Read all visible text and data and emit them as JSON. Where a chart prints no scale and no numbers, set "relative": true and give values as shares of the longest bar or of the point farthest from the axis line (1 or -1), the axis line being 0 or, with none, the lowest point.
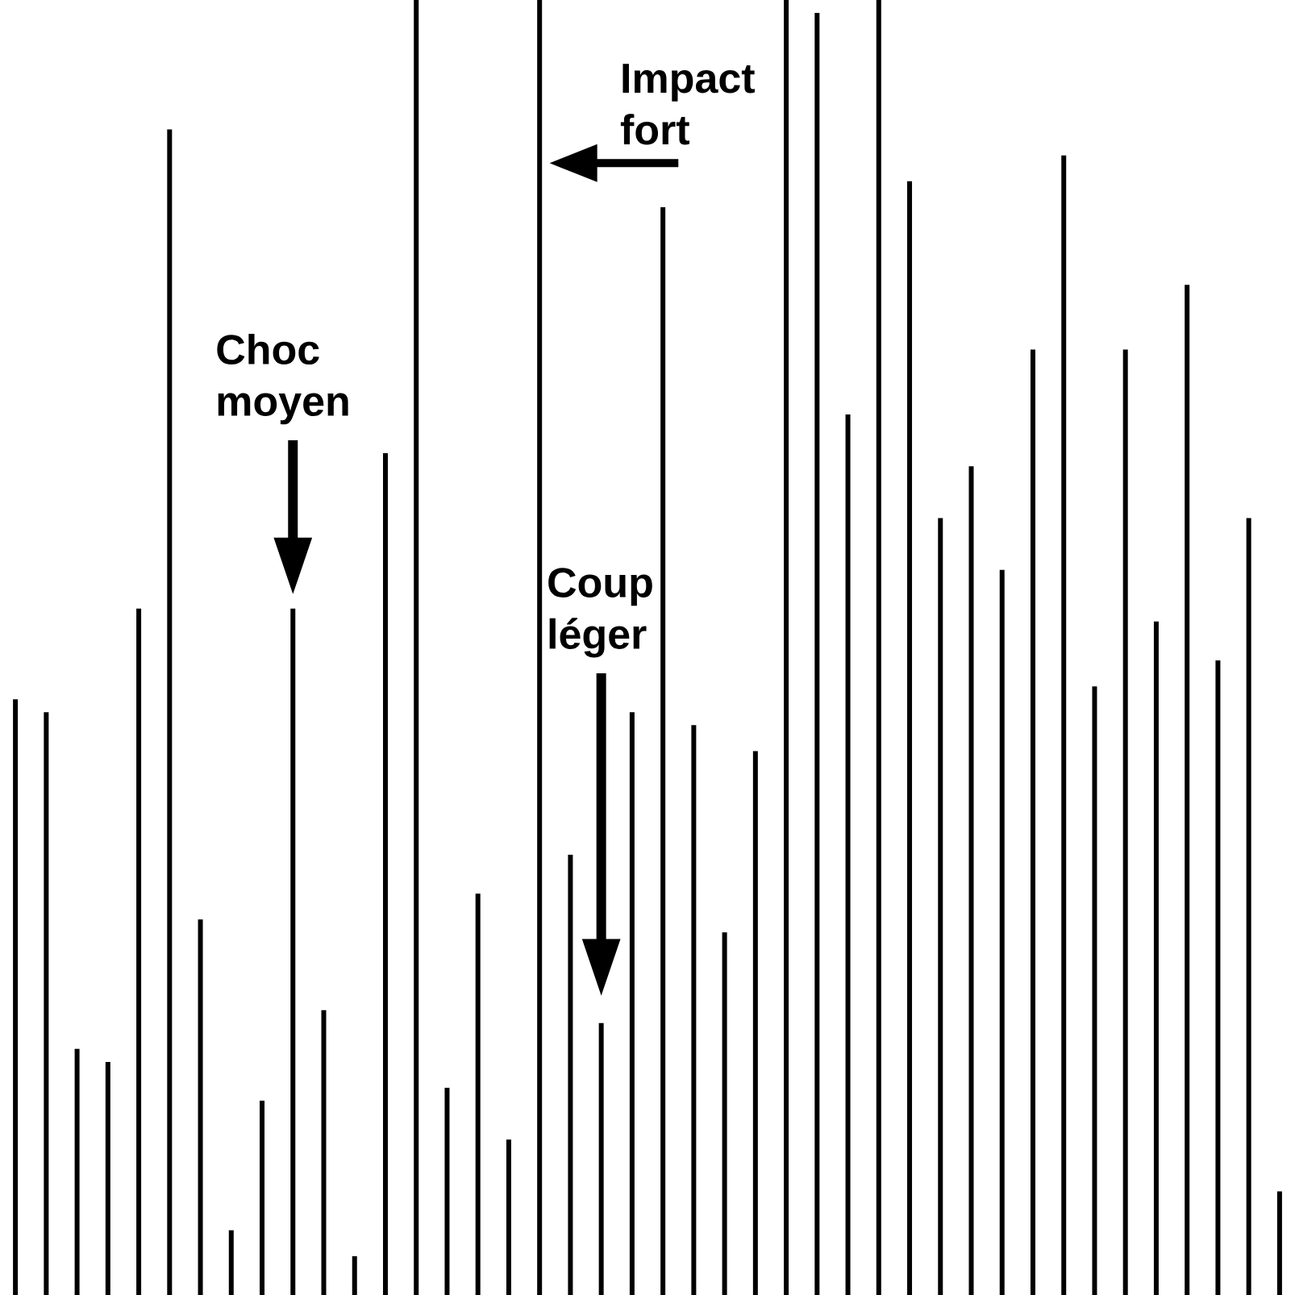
{
  "chart_data": {
    "type": "bar",
    "relative": true,
    "categories": [
      null,
      null,
      null,
      null,
      null,
      null,
      null,
      null,
      null,
      null,
      null,
      null,
      null,
      null,
      null,
      null,
      null,
      null,
      null,
      null,
      null,
      null,
      null,
      null,
      null,
      null,
      null,
      null,
      null,
      null,
      null,
      null,
      null,
      null,
      null,
      null,
      null,
      null,
      null,
      null,
      null,
      null
    ],
    "values": [
      0.46,
      0.45,
      0.19,
      0.18,
      0.53,
      0.9,
      0.29,
      0.05,
      0.15,
      0.53,
      0.22,
      0.03,
      0.65,
      1,
      0.16,
      0.31,
      0.12,
      1,
      0.34,
      0.21,
      0.45,
      0.84,
      0.44,
      0.28,
      0.42,
      1,
      0.99,
      0.68,
      1,
      0.86,
      0.6,
      0.64,
      0.56,
      0.73,
      0.88,
      0.47,
      0.73,
      0.52,
      0.78,
      0.49,
      0.6,
      0.08
    ],
    "color": "#000000",
    "annotations": [
      "Impact fort",
      "Choc moyen",
      "Coup léger"
    ]
  }
}
